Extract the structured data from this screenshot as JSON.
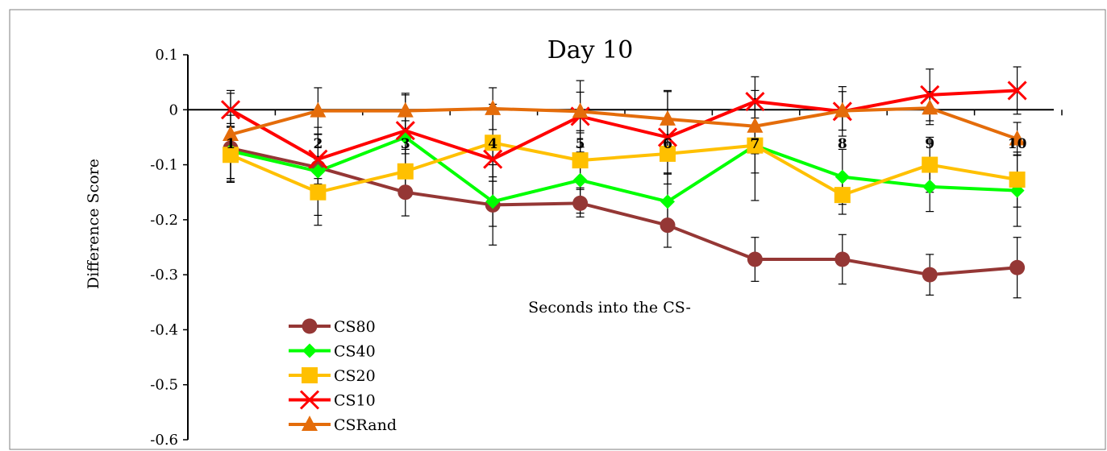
{
  "chart_data": {
    "type": "line",
    "title": "Day 10",
    "xlabel": "Seconds into the CS-",
    "ylabel": "Difference Score",
    "categories": [
      "1",
      "2",
      "3",
      "4",
      "5",
      "6",
      "7",
      "8",
      "9",
      "10"
    ],
    "ylim": [
      -0.6,
      0.1
    ],
    "yticks": [
      0.1,
      0,
      -0.1,
      -0.2,
      -0.3,
      -0.4,
      -0.5,
      -0.6
    ],
    "ytick_labels": [
      "0.1",
      "0",
      "-0.1",
      "-0.2",
      "-0.3",
      "-0.4",
      "-0.5",
      "-0.6"
    ],
    "grid": false,
    "legend_position": "bottom-left inside plot",
    "series": [
      {
        "name": "CS80",
        "color": "#953735",
        "marker": "circle",
        "values": [
          -0.07,
          -0.105,
          -0.15,
          -0.173,
          -0.17,
          -0.21,
          -0.272,
          -0.272,
          -0.3,
          -0.287
        ],
        "error": [
          0.06,
          0.02,
          0.043,
          0.073,
          0.025,
          0.04,
          0.04,
          0.045,
          0.037,
          0.055
        ]
      },
      {
        "name": "CS40",
        "color": "#00ff00",
        "marker": "diamond",
        "values": [
          -0.075,
          -0.112,
          -0.05,
          -0.167,
          -0.128,
          -0.167,
          -0.065,
          -0.122,
          -0.14,
          -0.147
        ],
        "error": [
          0.05,
          0.08,
          0.03,
          0.045,
          0.06,
          0.05,
          0.1,
          0.05,
          0.045,
          0.065
        ]
      },
      {
        "name": "CS20",
        "color": "#ffc000",
        "marker": "square",
        "values": [
          -0.082,
          -0.15,
          -0.112,
          -0.06,
          -0.092,
          -0.08,
          -0.065,
          -0.155,
          -0.1,
          -0.127
        ],
        "error": [
          0.05,
          0.06,
          0.04,
          0.07,
          0.05,
          0.035,
          0.05,
          0.035,
          0.05,
          0.05
        ]
      },
      {
        "name": "CS10",
        "color": "#ff0000",
        "marker": "x",
        "values": [
          0.0,
          -0.09,
          -0.038,
          -0.09,
          -0.012,
          -0.05,
          0.015,
          -0.003,
          0.027,
          0.035
        ],
        "error": [
          0.03,
          0.045,
          0.065,
          0.04,
          0.065,
          0.085,
          0.045,
          0.045,
          0.047,
          0.043
        ]
      },
      {
        "name": "CSRand",
        "color": "#e46c0a",
        "marker": "triangle",
        "values": [
          -0.045,
          -0.002,
          -0.002,
          0.002,
          -0.003,
          -0.017,
          -0.03,
          -0.002,
          0.003,
          -0.053
        ],
        "error": [
          0.08,
          0.042,
          0.032,
          0.038,
          0.035,
          0.05,
          0.05,
          0.035,
          0.03,
          0.03
        ]
      }
    ]
  }
}
